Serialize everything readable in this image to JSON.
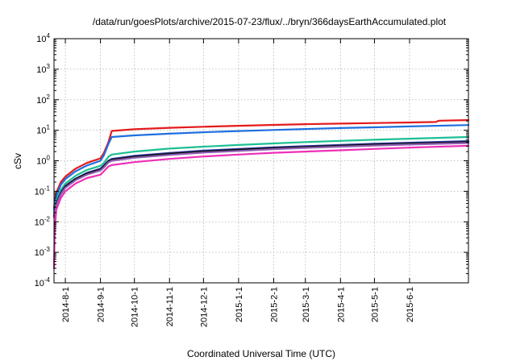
{
  "chart_data": {
    "type": "line",
    "title": "/data/run/goesPlots/archive/2015-07-23/flux/../bryn/366daysEarthAccumulated.plot",
    "xlabel": "Coordinated Universal Time (UTC)",
    "ylabel": "cSv",
    "yscale": "log",
    "ylim_exponents": [
      -4,
      4
    ],
    "ytick_exponents": [
      -4,
      -3,
      -2,
      -1,
      0,
      1,
      2,
      3,
      4
    ],
    "ytick_base": "10",
    "xlim": [
      "2014-07-22",
      "2015-07-23"
    ],
    "xticks": [
      {
        "date": "2014-08-01",
        "label": "2014-8-1"
      },
      {
        "date": "2014-09-01",
        "label": "2014-9-1"
      },
      {
        "date": "2014-10-01",
        "label": "2014-10-1"
      },
      {
        "date": "2014-11-01",
        "label": "2014-11-1"
      },
      {
        "date": "2014-12-01",
        "label": "2014-12-1"
      },
      {
        "date": "2015-01-01",
        "label": "2015-1-1"
      },
      {
        "date": "2015-02-01",
        "label": "2015-2-1"
      },
      {
        "date": "2015-03-01",
        "label": "2015-3-1"
      },
      {
        "date": "2015-04-01",
        "label": "2015-4-1"
      },
      {
        "date": "2015-05-01",
        "label": "2015-5-1"
      },
      {
        "date": "2015-06-01",
        "label": "2015-6-1"
      }
    ],
    "grid": true,
    "series": [
      {
        "color": "#e41a1c",
        "points": [
          [
            "2014-07-22",
            0.03
          ],
          [
            "2014-07-24",
            0.09
          ],
          [
            "2014-07-28",
            0.2
          ],
          [
            "2014-08-01",
            0.3
          ],
          [
            "2014-08-10",
            0.55
          ],
          [
            "2014-08-20",
            0.85
          ],
          [
            "2014-09-01",
            1.2
          ],
          [
            "2014-09-04",
            1.8
          ],
          [
            "2014-09-08",
            4.0
          ],
          [
            "2014-09-11",
            9.5
          ],
          [
            "2014-10-01",
            10.8
          ],
          [
            "2014-11-01",
            12.0
          ],
          [
            "2014-12-01",
            13.0
          ],
          [
            "2015-01-01",
            14.0
          ],
          [
            "2015-02-01",
            15.0
          ],
          [
            "2015-03-01",
            15.8
          ],
          [
            "2015-04-01",
            16.5
          ],
          [
            "2015-05-01",
            17.2
          ],
          [
            "2015-06-01",
            18.0
          ],
          [
            "2015-06-24",
            18.6
          ],
          [
            "2015-06-27",
            20.5
          ],
          [
            "2015-07-23",
            21.5
          ]
        ]
      },
      {
        "color": "#1f6fe0",
        "points": [
          [
            "2014-07-22",
            0.025
          ],
          [
            "2014-07-24",
            0.07
          ],
          [
            "2014-07-28",
            0.16
          ],
          [
            "2014-08-01",
            0.25
          ],
          [
            "2014-08-10",
            0.45
          ],
          [
            "2014-08-20",
            0.7
          ],
          [
            "2014-09-01",
            1.0
          ],
          [
            "2014-09-04",
            1.5
          ],
          [
            "2014-09-08",
            3.5
          ],
          [
            "2014-09-11",
            6.0
          ],
          [
            "2014-10-01",
            6.8
          ],
          [
            "2014-11-01",
            7.7
          ],
          [
            "2014-12-01",
            8.6
          ],
          [
            "2015-01-01",
            9.4
          ],
          [
            "2015-02-01",
            10.2
          ],
          [
            "2015-03-01",
            11.0
          ],
          [
            "2015-04-01",
            11.8
          ],
          [
            "2015-05-01",
            12.5
          ],
          [
            "2015-06-01",
            13.3
          ],
          [
            "2015-07-23",
            14.8
          ]
        ]
      },
      {
        "color": "#1dbf94",
        "points": [
          [
            "2014-07-22",
            0.02
          ],
          [
            "2014-07-24",
            0.05
          ],
          [
            "2014-07-28",
            0.11
          ],
          [
            "2014-08-01",
            0.18
          ],
          [
            "2014-08-10",
            0.32
          ],
          [
            "2014-08-20",
            0.5
          ],
          [
            "2014-09-01",
            0.68
          ],
          [
            "2014-09-04",
            0.85
          ],
          [
            "2014-09-08",
            1.35
          ],
          [
            "2014-09-11",
            1.6
          ],
          [
            "2014-10-01",
            2.0
          ],
          [
            "2014-11-01",
            2.5
          ],
          [
            "2014-12-01",
            2.9
          ],
          [
            "2015-01-01",
            3.3
          ],
          [
            "2015-02-01",
            3.7
          ],
          [
            "2015-03-01",
            4.1
          ],
          [
            "2015-04-01",
            4.5
          ],
          [
            "2015-05-01",
            4.9
          ],
          [
            "2015-06-01",
            5.3
          ],
          [
            "2015-07-23",
            6.0
          ]
        ]
      },
      {
        "color": "#2e3aa8",
        "points": [
          [
            "2014-07-22",
            0.016
          ],
          [
            "2014-07-24",
            0.04
          ],
          [
            "2014-07-28",
            0.09
          ],
          [
            "2014-08-01",
            0.15
          ],
          [
            "2014-08-10",
            0.26
          ],
          [
            "2014-08-20",
            0.4
          ],
          [
            "2014-09-01",
            0.55
          ],
          [
            "2014-09-04",
            0.7
          ],
          [
            "2014-09-08",
            1.0
          ],
          [
            "2014-09-11",
            1.15
          ],
          [
            "2014-10-01",
            1.45
          ],
          [
            "2014-11-01",
            1.8
          ],
          [
            "2014-12-01",
            2.15
          ],
          [
            "2015-01-01",
            2.45
          ],
          [
            "2015-02-01",
            2.75
          ],
          [
            "2015-03-01",
            3.0
          ],
          [
            "2015-04-01",
            3.3
          ],
          [
            "2015-05-01",
            3.6
          ],
          [
            "2015-06-01",
            3.9
          ],
          [
            "2015-07-23",
            4.4
          ]
        ]
      },
      {
        "color": "#111111",
        "points": [
          [
            "2014-07-22",
            0.015
          ],
          [
            "2014-07-24",
            0.038
          ],
          [
            "2014-07-28",
            0.085
          ],
          [
            "2014-08-01",
            0.14
          ],
          [
            "2014-08-10",
            0.25
          ],
          [
            "2014-08-20",
            0.38
          ],
          [
            "2014-09-01",
            0.52
          ],
          [
            "2014-09-04",
            0.66
          ],
          [
            "2014-09-08",
            0.95
          ],
          [
            "2014-09-11",
            1.08
          ],
          [
            "2014-10-01",
            1.35
          ],
          [
            "2014-11-01",
            1.7
          ],
          [
            "2014-12-01",
            2.0
          ],
          [
            "2015-01-01",
            2.3
          ],
          [
            "2015-02-01",
            2.6
          ],
          [
            "2015-03-01",
            2.85
          ],
          [
            "2015-04-01",
            3.1
          ],
          [
            "2015-05-01",
            3.4
          ],
          [
            "2015-06-01",
            3.65
          ],
          [
            "2015-07-23",
            4.1
          ]
        ]
      },
      {
        "color": "#8e5fb4",
        "points": [
          [
            "2014-07-22",
            0.014
          ],
          [
            "2014-07-24",
            0.035
          ],
          [
            "2014-07-28",
            0.078
          ],
          [
            "2014-08-01",
            0.13
          ],
          [
            "2014-08-10",
            0.23
          ],
          [
            "2014-08-20",
            0.35
          ],
          [
            "2014-09-01",
            0.48
          ],
          [
            "2014-09-04",
            0.6
          ],
          [
            "2014-09-08",
            0.88
          ],
          [
            "2014-09-11",
            1.0
          ],
          [
            "2014-10-01",
            1.25
          ],
          [
            "2014-11-01",
            1.55
          ],
          [
            "2014-12-01",
            1.85
          ],
          [
            "2015-01-01",
            2.1
          ],
          [
            "2015-02-01",
            2.4
          ],
          [
            "2015-03-01",
            2.65
          ],
          [
            "2015-04-01",
            2.9
          ],
          [
            "2015-05-01",
            3.15
          ],
          [
            "2015-06-01",
            3.4
          ],
          [
            "2015-07-23",
            3.8
          ]
        ]
      },
      {
        "color": "#ee2fb8",
        "points": [
          [
            "2014-07-22",
            0.0003
          ],
          [
            "2014-07-22.5",
            0.003
          ],
          [
            "2014-07-23",
            0.008
          ],
          [
            "2014-07-24",
            0.025
          ],
          [
            "2014-07-28",
            0.06
          ],
          [
            "2014-08-01",
            0.1
          ],
          [
            "2014-08-10",
            0.18
          ],
          [
            "2014-08-20",
            0.27
          ],
          [
            "2014-09-01",
            0.35
          ],
          [
            "2014-09-04",
            0.45
          ],
          [
            "2014-09-08",
            0.65
          ],
          [
            "2014-09-11",
            0.72
          ],
          [
            "2014-10-01",
            0.9
          ],
          [
            "2014-11-01",
            1.15
          ],
          [
            "2014-12-01",
            1.38
          ],
          [
            "2015-01-01",
            1.6
          ],
          [
            "2015-02-01",
            1.82
          ],
          [
            "2015-03-01",
            2.0
          ],
          [
            "2015-04-01",
            2.2
          ],
          [
            "2015-05-01",
            2.45
          ],
          [
            "2015-06-01",
            2.7
          ],
          [
            "2015-07-23",
            3.1
          ]
        ]
      }
    ]
  }
}
